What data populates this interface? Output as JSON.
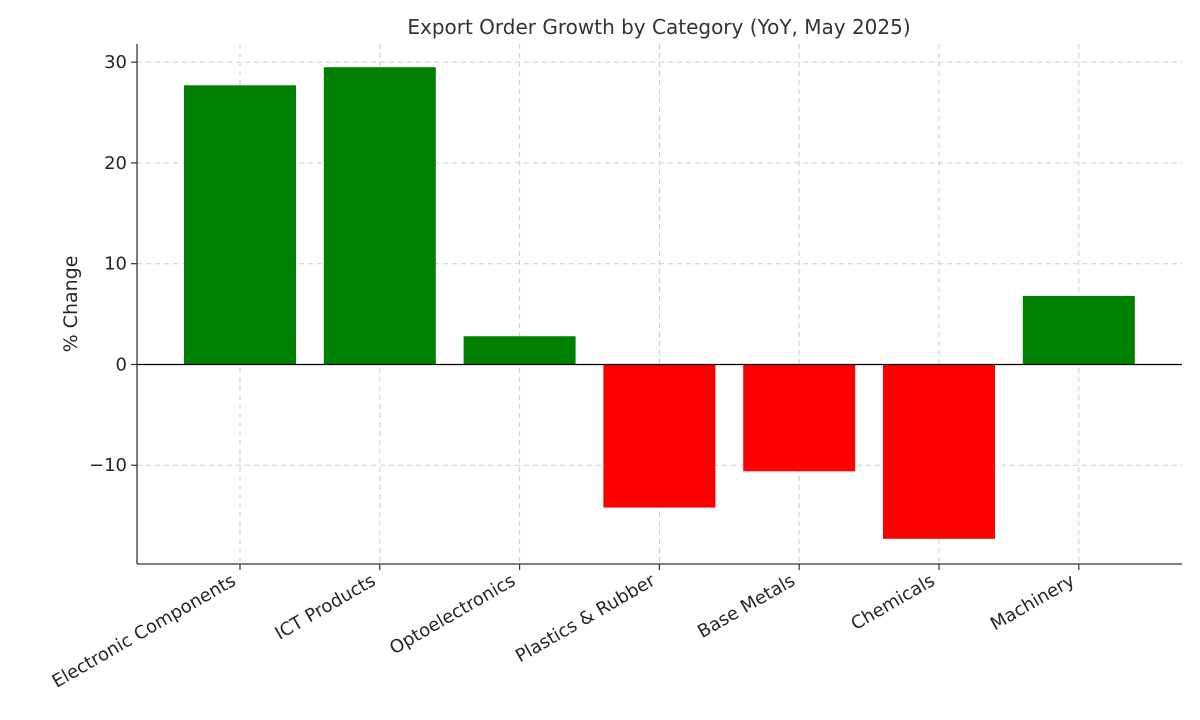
{
  "chart_data": {
    "type": "bar",
    "title": "Export Order Growth by Category (YoY, May 2025)",
    "xlabel": "",
    "ylabel": "% Change",
    "categories": [
      "Electronic Components",
      "ICT Products",
      "Optoelectronics",
      "Plastics & Rubber",
      "Base Metals",
      "Chemicals",
      "Machinery"
    ],
    "values": [
      27.7,
      29.5,
      2.8,
      -14.2,
      -10.6,
      -17.3,
      6.8
    ],
    "ylim": [
      -19.8,
      31.8
    ],
    "yticks": [
      30,
      20,
      10,
      0,
      -10
    ],
    "ytick_labels": [
      "30",
      "20",
      "10",
      "0",
      "−10"
    ],
    "grid": true,
    "colors": {
      "positive": "#008000",
      "negative": "#ff0000"
    }
  }
}
